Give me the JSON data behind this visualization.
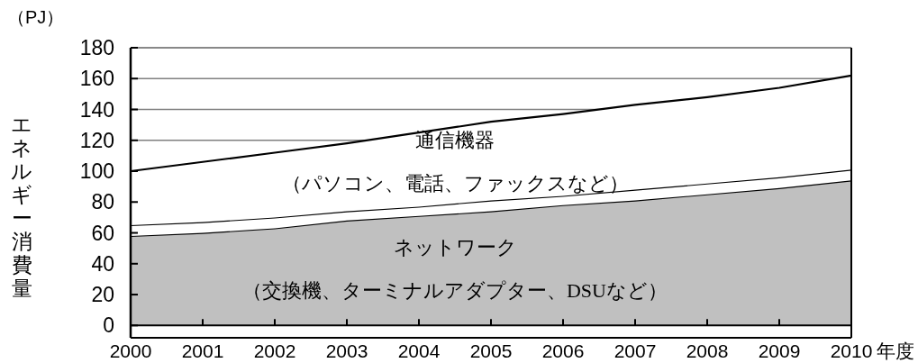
{
  "chart_data": {
    "type": "area",
    "stacked": true,
    "xlabel": "年度",
    "ylabel": "エネルギー消費量",
    "annotations": [
      "（PJ）"
    ],
    "x": [
      2000,
      2001,
      2002,
      2003,
      2004,
      2005,
      2006,
      2007,
      2008,
      2009,
      2010
    ],
    "xlim": [
      2000,
      2010
    ],
    "xticks": [
      2000,
      2001,
      2002,
      2003,
      2004,
      2005,
      2006,
      2007,
      2008,
      2009,
      2010
    ],
    "ylim": [
      -8,
      180
    ],
    "yticks": [
      0,
      20,
      40,
      60,
      80,
      100,
      120,
      140,
      160,
      180
    ],
    "grid": "y",
    "legend": false,
    "series": [
      {
        "name": "ネットワーク（交換機、ターミナルアダプター、DSUなど）",
        "color": "#c0c0c0",
        "values": [
          58,
          60,
          63,
          68,
          71,
          74,
          78,
          81,
          85,
          89,
          94
        ]
      },
      {
        "color": "#ffffff",
        "values": [
          7,
          7,
          7,
          6,
          6,
          7,
          6,
          7,
          7,
          7,
          7
        ]
      },
      {
        "name": "通信機器（パソコン、電話、ファックスなど）",
        "color": "#ffffff",
        "values": [
          35,
          39,
          42,
          44,
          48,
          51,
          53,
          55,
          56,
          58,
          61
        ]
      }
    ]
  }
}
